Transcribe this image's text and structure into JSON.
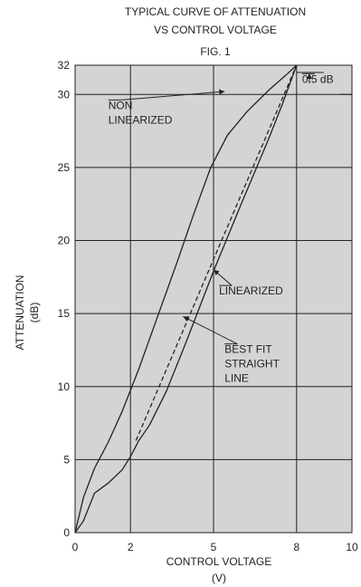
{
  "chart_data": {
    "type": "line",
    "title": [
      "TYPICAL CURVE OF ATTENUATION",
      "VS CONTROL VOLTAGE",
      "FIG. 1"
    ],
    "xlabel": [
      "CONTROL VOLTAGE",
      "(V)"
    ],
    "ylabel": [
      "ATTENUATION",
      "(dB)"
    ],
    "xlim": [
      0,
      10
    ],
    "ylim": [
      0,
      32
    ],
    "x_ticks": [
      0,
      2,
      5,
      8,
      10
    ],
    "y_ticks": [
      0,
      5,
      10,
      15,
      20,
      25,
      30,
      32
    ],
    "grid": true,
    "background": "#d4d4d4",
    "series": [
      {
        "name": "NON LINEARIZED",
        "style": "solid",
        "x": [
          0,
          0.3,
          0.7,
          1.2,
          1.7,
          2.3,
          3.0,
          3.7,
          4.3,
          4.9,
          5.5,
          6.2,
          7.0,
          7.6,
          8.0
        ],
        "y": [
          0,
          2.4,
          4.4,
          6.2,
          8.3,
          11.2,
          14.9,
          18.6,
          21.9,
          25.0,
          27.2,
          28.8,
          30.3,
          31.3,
          32.0
        ]
      },
      {
        "name": "LINEARIZED",
        "style": "solid",
        "x": [
          0,
          0.3,
          0.7,
          1.2,
          1.7,
          2.0,
          2.3,
          2.7,
          3.3,
          4.0,
          5.0,
          6.0,
          7.0,
          7.5,
          8.0
        ],
        "y": [
          0,
          0.8,
          2.7,
          3.4,
          4.3,
          5.2,
          6.3,
          7.4,
          9.7,
          13.0,
          17.9,
          22.5,
          27.0,
          29.4,
          32.0
        ]
      },
      {
        "name": "BEST FIT STRAIGHT LINE",
        "style": "dashed",
        "x": [
          2.2,
          8.0
        ],
        "y": [
          6.3,
          32.0
        ]
      }
    ],
    "annotations": [
      {
        "lines": [
          "NON",
          "LINEARIZED"
        ],
        "x": 1.2,
        "y": 29.0,
        "arrow_to": [
          5.4,
          30.2
        ]
      },
      {
        "lines": [
          "LINEARIZED"
        ],
        "x": 5.2,
        "y": 16.3,
        "arrow_to": [
          5.0,
          18.0
        ]
      },
      {
        "lines": [
          "BEST FIT",
          "STRAIGHT",
          "LINE"
        ],
        "x": 5.4,
        "y": 12.3,
        "arrow_to": [
          3.9,
          14.8
        ]
      },
      {
        "lines": [
          "0.5 dB"
        ],
        "x": 8.2,
        "y": 30.8
      }
    ]
  }
}
